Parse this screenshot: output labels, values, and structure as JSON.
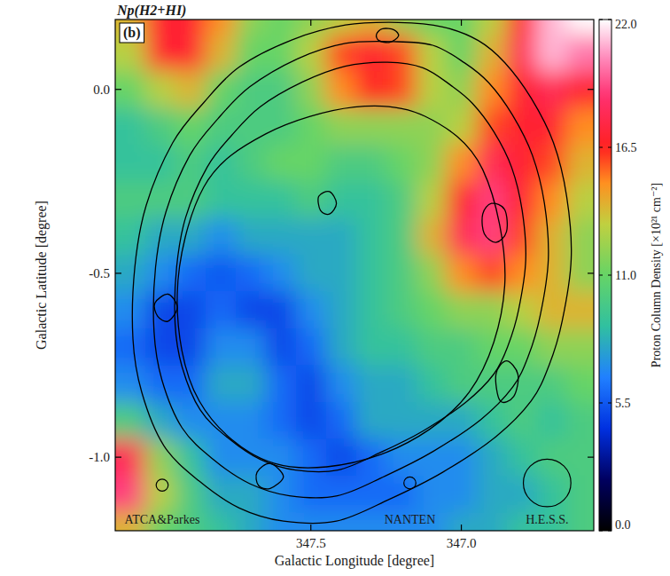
{
  "chart_data": {
    "type": "heatmap",
    "title": "Np(H2+HI)",
    "panel_label": "(b)",
    "x_label": "Galactic Longitude [degree]",
    "y_label": "Galactic Latitude [degree]",
    "colorbar_label": "Proton Column Density [×10²¹ cm⁻²]",
    "xlim": [
      348.15,
      346.56
    ],
    "ylim": [
      -1.2,
      0.19
    ],
    "xticks": [
      347.5,
      {
        "value": 347,
        "label": "347.0"
      }
    ],
    "yticks": [
      {
        "value": 0,
        "label": "0.0"
      },
      -0.5,
      {
        "value": -1,
        "label": "-1.0"
      }
    ],
    "colorbar_range": [
      0,
      22
    ],
    "colorbar_ticks": [
      {
        "value": 0,
        "label": "0.0"
      },
      5.5,
      {
        "value": 11,
        "label": "11.0"
      },
      16.5,
      {
        "value": 22,
        "label": "22.0"
      }
    ],
    "x": [
      348.1,
      348.0,
      347.9,
      347.8,
      347.7,
      347.6,
      347.5,
      347.4,
      347.3,
      347.2,
      347.1,
      347.0,
      346.9,
      346.8,
      346.7,
      346.6
    ],
    "y": [
      0.2,
      0.1,
      0,
      -0.1,
      -0.2,
      -0.3,
      -0.4,
      -0.5,
      -0.6,
      -0.7,
      -0.8,
      -0.9,
      -1.0,
      -1.1,
      -1.2
    ],
    "cells": [
      [
        14,
        17,
        17,
        15,
        12,
        11,
        12,
        13,
        14,
        12,
        11,
        11,
        13,
        17,
        21,
        22
      ],
      [
        13,
        17,
        17,
        14,
        11,
        11,
        13,
        16,
        17,
        16,
        13,
        11,
        14,
        18,
        21,
        20
      ],
      [
        11,
        13,
        14,
        11,
        10,
        10,
        12,
        15,
        16.5,
        16,
        13,
        12,
        15,
        17,
        18,
        17
      ],
      [
        9,
        10,
        11,
        10,
        10,
        10,
        11,
        12,
        12,
        12,
        12,
        13,
        16,
        17,
        17,
        15
      ],
      [
        9,
        9,
        10,
        9,
        10,
        11,
        11,
        10,
        10,
        11,
        12,
        15,
        18,
        17,
        16,
        14
      ],
      [
        10,
        10,
        10,
        9,
        9,
        9,
        10,
        9,
        9,
        10,
        13,
        17,
        19,
        17,
        15,
        13
      ],
      [
        9,
        8,
        8,
        7,
        8,
        8,
        8,
        8,
        9,
        10,
        14,
        18,
        19,
        16,
        14,
        12
      ],
      [
        8,
        7,
        6,
        5.5,
        6,
        7,
        8,
        8,
        9,
        10,
        12,
        15,
        16,
        15,
        14,
        12
      ],
      [
        7,
        5,
        5,
        6,
        5,
        5,
        7,
        8,
        9,
        10,
        11,
        12,
        12,
        13,
        14,
        14
      ],
      [
        6,
        5,
        5,
        7,
        7,
        5,
        6,
        8,
        9,
        9,
        10,
        10,
        11,
        11,
        12,
        12
      ],
      [
        7,
        6,
        6,
        8,
        8,
        6,
        5,
        7,
        8,
        8,
        9,
        10,
        10,
        10,
        10,
        11
      ],
      [
        10,
        8,
        7,
        7,
        7,
        6,
        5,
        6,
        8,
        8,
        8,
        8,
        9,
        10,
        9,
        10
      ],
      [
        18,
        12,
        9,
        7,
        7,
        7,
        6,
        5,
        6,
        7,
        7,
        7,
        8,
        9,
        10,
        10
      ],
      [
        19,
        13,
        10,
        8,
        8,
        7,
        6,
        6,
        6,
        6,
        7,
        7,
        8,
        8,
        9,
        10
      ],
      [
        14,
        11,
        10,
        9,
        8,
        7,
        7,
        7,
        7,
        7,
        7,
        8,
        8,
        9,
        9,
        10
      ]
    ],
    "contours": [
      {
        "points": [
          [
            347.856,
            -0.036
          ],
          [
            347.738,
            0.061
          ],
          [
            347.562,
            0.135
          ],
          [
            347.385,
            0.175
          ],
          [
            347.209,
            0.182
          ],
          [
            347.062,
            0.17
          ],
          [
            346.944,
            0.133
          ],
          [
            346.856,
            0.073
          ],
          [
            346.768,
            -0.024
          ],
          [
            346.694,
            -0.145
          ],
          [
            346.65,
            -0.291
          ],
          [
            346.635,
            -0.46
          ],
          [
            346.665,
            -0.63
          ],
          [
            346.709,
            -0.751
          ],
          [
            346.768,
            -0.847
          ],
          [
            346.885,
            -0.944
          ],
          [
            347.062,
            -1.041
          ],
          [
            347.238,
            -1.114
          ],
          [
            347.415,
            -1.174
          ],
          [
            347.591,
            -1.174
          ],
          [
            347.738,
            -1.138
          ],
          [
            347.871,
            -1.065
          ],
          [
            347.988,
            -0.969
          ],
          [
            348.062,
            -0.823
          ],
          [
            348.091,
            -0.678
          ],
          [
            348.085,
            -0.484
          ],
          [
            348.047,
            -0.315
          ],
          [
            347.959,
            -0.145
          ]
        ]
      },
      {
        "points": [
          [
            347.809,
            -0.08
          ],
          [
            347.703,
            0.007
          ],
          [
            347.545,
            0.083
          ],
          [
            347.386,
            0.125
          ],
          [
            347.227,
            0.13
          ],
          [
            347.095,
            0.12
          ],
          [
            346.989,
            0.072
          ],
          [
            346.909,
            0.018
          ],
          [
            346.83,
            -0.07
          ],
          [
            346.764,
            -0.179
          ],
          [
            346.724,
            -0.31
          ],
          [
            346.711,
            -0.462
          ],
          [
            346.738,
            -0.615
          ],
          [
            346.777,
            -0.724
          ],
          [
            346.83,
            -0.81
          ],
          [
            346.936,
            -0.898
          ],
          [
            347.095,
            -0.985
          ],
          [
            347.253,
            -1.051
          ],
          [
            347.412,
            -1.105
          ],
          [
            347.571,
            -1.105
          ],
          [
            347.703,
            -1.072
          ],
          [
            347.823,
            -1.007
          ],
          [
            347.928,
            -0.92
          ],
          [
            347.995,
            -0.789
          ],
          [
            348.021,
            -0.658
          ],
          [
            348.016,
            -0.484
          ],
          [
            347.981,
            -0.332
          ],
          [
            347.902,
            -0.179
          ]
        ]
      },
      {
        "points": [
          [
            347.763,
            -0.125
          ],
          [
            347.668,
            -0.047
          ],
          [
            347.528,
            0.02
          ],
          [
            347.386,
            0.063
          ],
          [
            347.245,
            0.074
          ],
          [
            347.128,
            0.059
          ],
          [
            347.033,
            0.01
          ],
          [
            346.963,
            -0.038
          ],
          [
            346.892,
            -0.115
          ],
          [
            346.833,
            -0.212
          ],
          [
            346.798,
            -0.329
          ],
          [
            346.786,
            -0.464
          ],
          [
            346.81,
            -0.6
          ],
          [
            346.845,
            -0.697
          ],
          [
            346.892,
            -0.774
          ],
          [
            346.986,
            -0.851
          ],
          [
            347.128,
            -0.929
          ],
          [
            347.268,
            -0.987
          ],
          [
            347.41,
            -1.035
          ],
          [
            347.551,
            -1.035
          ],
          [
            347.668,
            -1.006
          ],
          [
            347.775,
            -0.948
          ],
          [
            347.868,
            -0.871
          ],
          [
            347.928,
            -0.754
          ],
          [
            347.951,
            -0.638
          ],
          [
            347.946,
            -0.483
          ],
          [
            347.916,
            -0.348
          ],
          [
            347.845,
            -0.212
          ]
        ]
      },
      {
        "points": [
          [
            347.65,
            -0.121
          ],
          [
            347.356,
            -0.048
          ],
          [
            347.121,
            -0.073
          ],
          [
            346.929,
            -0.218
          ],
          [
            346.856,
            -0.533
          ],
          [
            346.974,
            -0.823
          ],
          [
            347.268,
            -0.993
          ],
          [
            347.621,
            -1.017
          ],
          [
            347.871,
            -0.847
          ],
          [
            347.944,
            -0.557
          ],
          [
            347.856,
            -0.266
          ]
        ]
      },
      {
        "points": [
          [
            347.282,
            0.15
          ],
          [
            347.262,
            0.165
          ],
          [
            347.224,
            0.162
          ],
          [
            347.209,
            0.145
          ],
          [
            347.238,
            0.128
          ],
          [
            347.274,
            0.133
          ]
        ]
      },
      {
        "points": [
          [
            346.929,
            -0.339
          ],
          [
            346.9,
            -0.31
          ],
          [
            346.856,
            -0.327
          ],
          [
            346.85,
            -0.387
          ],
          [
            346.885,
            -0.416
          ],
          [
            346.924,
            -0.392
          ]
        ]
      },
      {
        "points": [
          [
            346.885,
            -0.775
          ],
          [
            346.85,
            -0.738
          ],
          [
            346.812,
            -0.775
          ],
          [
            346.826,
            -0.835
          ],
          [
            346.871,
            -0.847
          ]
        ]
      },
      {
        "points": [
          [
            348.018,
            -0.581
          ],
          [
            347.974,
            -0.557
          ],
          [
            347.944,
            -0.593
          ],
          [
            347.974,
            -0.63
          ],
          [
            348.009,
            -0.617
          ]
        ]
      },
      {
        "points": [
          [
            347.679,
            -1.041
          ],
          [
            347.635,
            -1.017
          ],
          [
            347.591,
            -1.053
          ],
          [
            347.635,
            -1.085
          ],
          [
            347.674,
            -1.077
          ]
        ]
      },
      {
        "points": [
          [
            347.474,
            -0.291
          ],
          [
            347.438,
            -0.278
          ],
          [
            347.415,
            -0.31
          ],
          [
            347.438,
            -0.339
          ],
          [
            347.468,
            -0.329
          ]
        ]
      }
    ],
    "beams": [
      {
        "label": "ATCA&Parkes",
        "x": 347.994,
        "y": -1.076,
        "radius": 0.02
      },
      {
        "label": "NANTEN",
        "x": 347.171,
        "y": -1.07,
        "radius": 0.02
      },
      {
        "label": "H.E.S.S.",
        "x": 346.715,
        "y": -1.07,
        "radius": 0.079
      }
    ]
  }
}
